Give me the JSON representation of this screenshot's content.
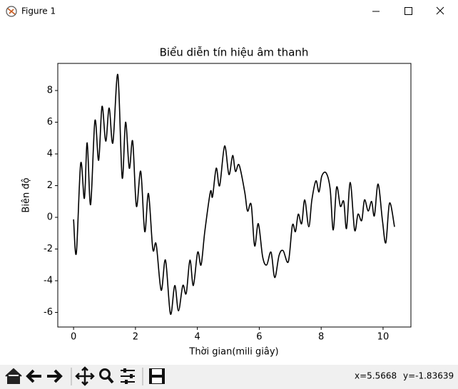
{
  "window": {
    "title": "Figure 1"
  },
  "status": {
    "x": "x=5.5668",
    "y": "y=-1.83639"
  },
  "chart_data": {
    "type": "line",
    "title": "Biểu diễn tín hiệu âm thanh",
    "x_label": "Thời gian(mili giây)",
    "y_label": "Biên độ",
    "xlim": [
      -0.51,
      10.9
    ],
    "ylim": [
      -6.92,
      9.71
    ],
    "xticks": [
      0,
      2,
      4,
      6,
      8,
      10
    ],
    "yticks": [
      -6,
      -4,
      -2,
      0,
      2,
      4,
      6,
      8
    ],
    "grid": false,
    "series": [
      {
        "color": "#000000",
        "x": [
          0,
          0.09,
          0.23,
          0.35,
          0.44,
          0.55,
          0.69,
          0.81,
          0.92,
          1.04,
          1.15,
          1.27,
          1.43,
          1.57,
          1.68,
          1.8,
          1.91,
          2.03,
          2.17,
          2.3,
          2.42,
          2.56,
          2.67,
          2.83,
          2.97,
          3.13,
          3.27,
          3.39,
          3.53,
          3.64,
          3.76,
          3.87,
          4.01,
          4.12,
          4.24,
          4.42,
          4.49,
          4.61,
          4.72,
          4.88,
          5.02,
          5.14,
          5.23,
          5.35,
          5.53,
          5.62,
          5.74,
          5.85,
          5.97,
          6.11,
          6.24,
          6.38,
          6.5,
          6.64,
          6.77,
          6.94,
          7.07,
          7.17,
          7.26,
          7.37,
          7.47,
          7.6,
          7.7,
          7.83,
          7.93,
          8.02,
          8.16,
          8.29,
          8.39,
          8.5,
          8.62,
          8.73,
          8.82,
          8.94,
          9.08,
          9.19,
          9.31,
          9.4,
          9.52,
          9.63,
          9.72,
          9.84,
          9.98,
          10.09,
          10.21,
          10.37
        ],
        "values": [
          -0.13,
          -2.25,
          3.4,
          1.2,
          4.7,
          0.8,
          6.1,
          3.6,
          7.0,
          4.8,
          6.9,
          4.7,
          9.0,
          2.5,
          6.0,
          3.1,
          4.8,
          0.7,
          2.9,
          -0.9,
          1.5,
          -2.0,
          -1.7,
          -4.6,
          -2.7,
          -6.1,
          -4.3,
          -5.9,
          -4.3,
          -4.8,
          -2.7,
          -4.3,
          -2.2,
          -3.0,
          -0.9,
          1.6,
          1.3,
          3.1,
          2.0,
          4.5,
          2.7,
          3.9,
          2.9,
          3.3,
          1.6,
          0.4,
          0.8,
          -1.8,
          -0.4,
          -2.5,
          -3.0,
          -2.2,
          -3.8,
          -2.4,
          -2.1,
          -2.8,
          -0.5,
          -0.9,
          0.2,
          -0.4,
          1.1,
          -0.6,
          1.1,
          2.3,
          1.6,
          2.6,
          2.8,
          1.8,
          -0.8,
          1.9,
          0.7,
          1.0,
          -0.7,
          2.2,
          -0.8,
          0.2,
          -0.2,
          1.1,
          0.4,
          1.0,
          0.1,
          2.1,
          -0.2,
          -1.6,
          0.9,
          -0.6
        ]
      }
    ]
  }
}
